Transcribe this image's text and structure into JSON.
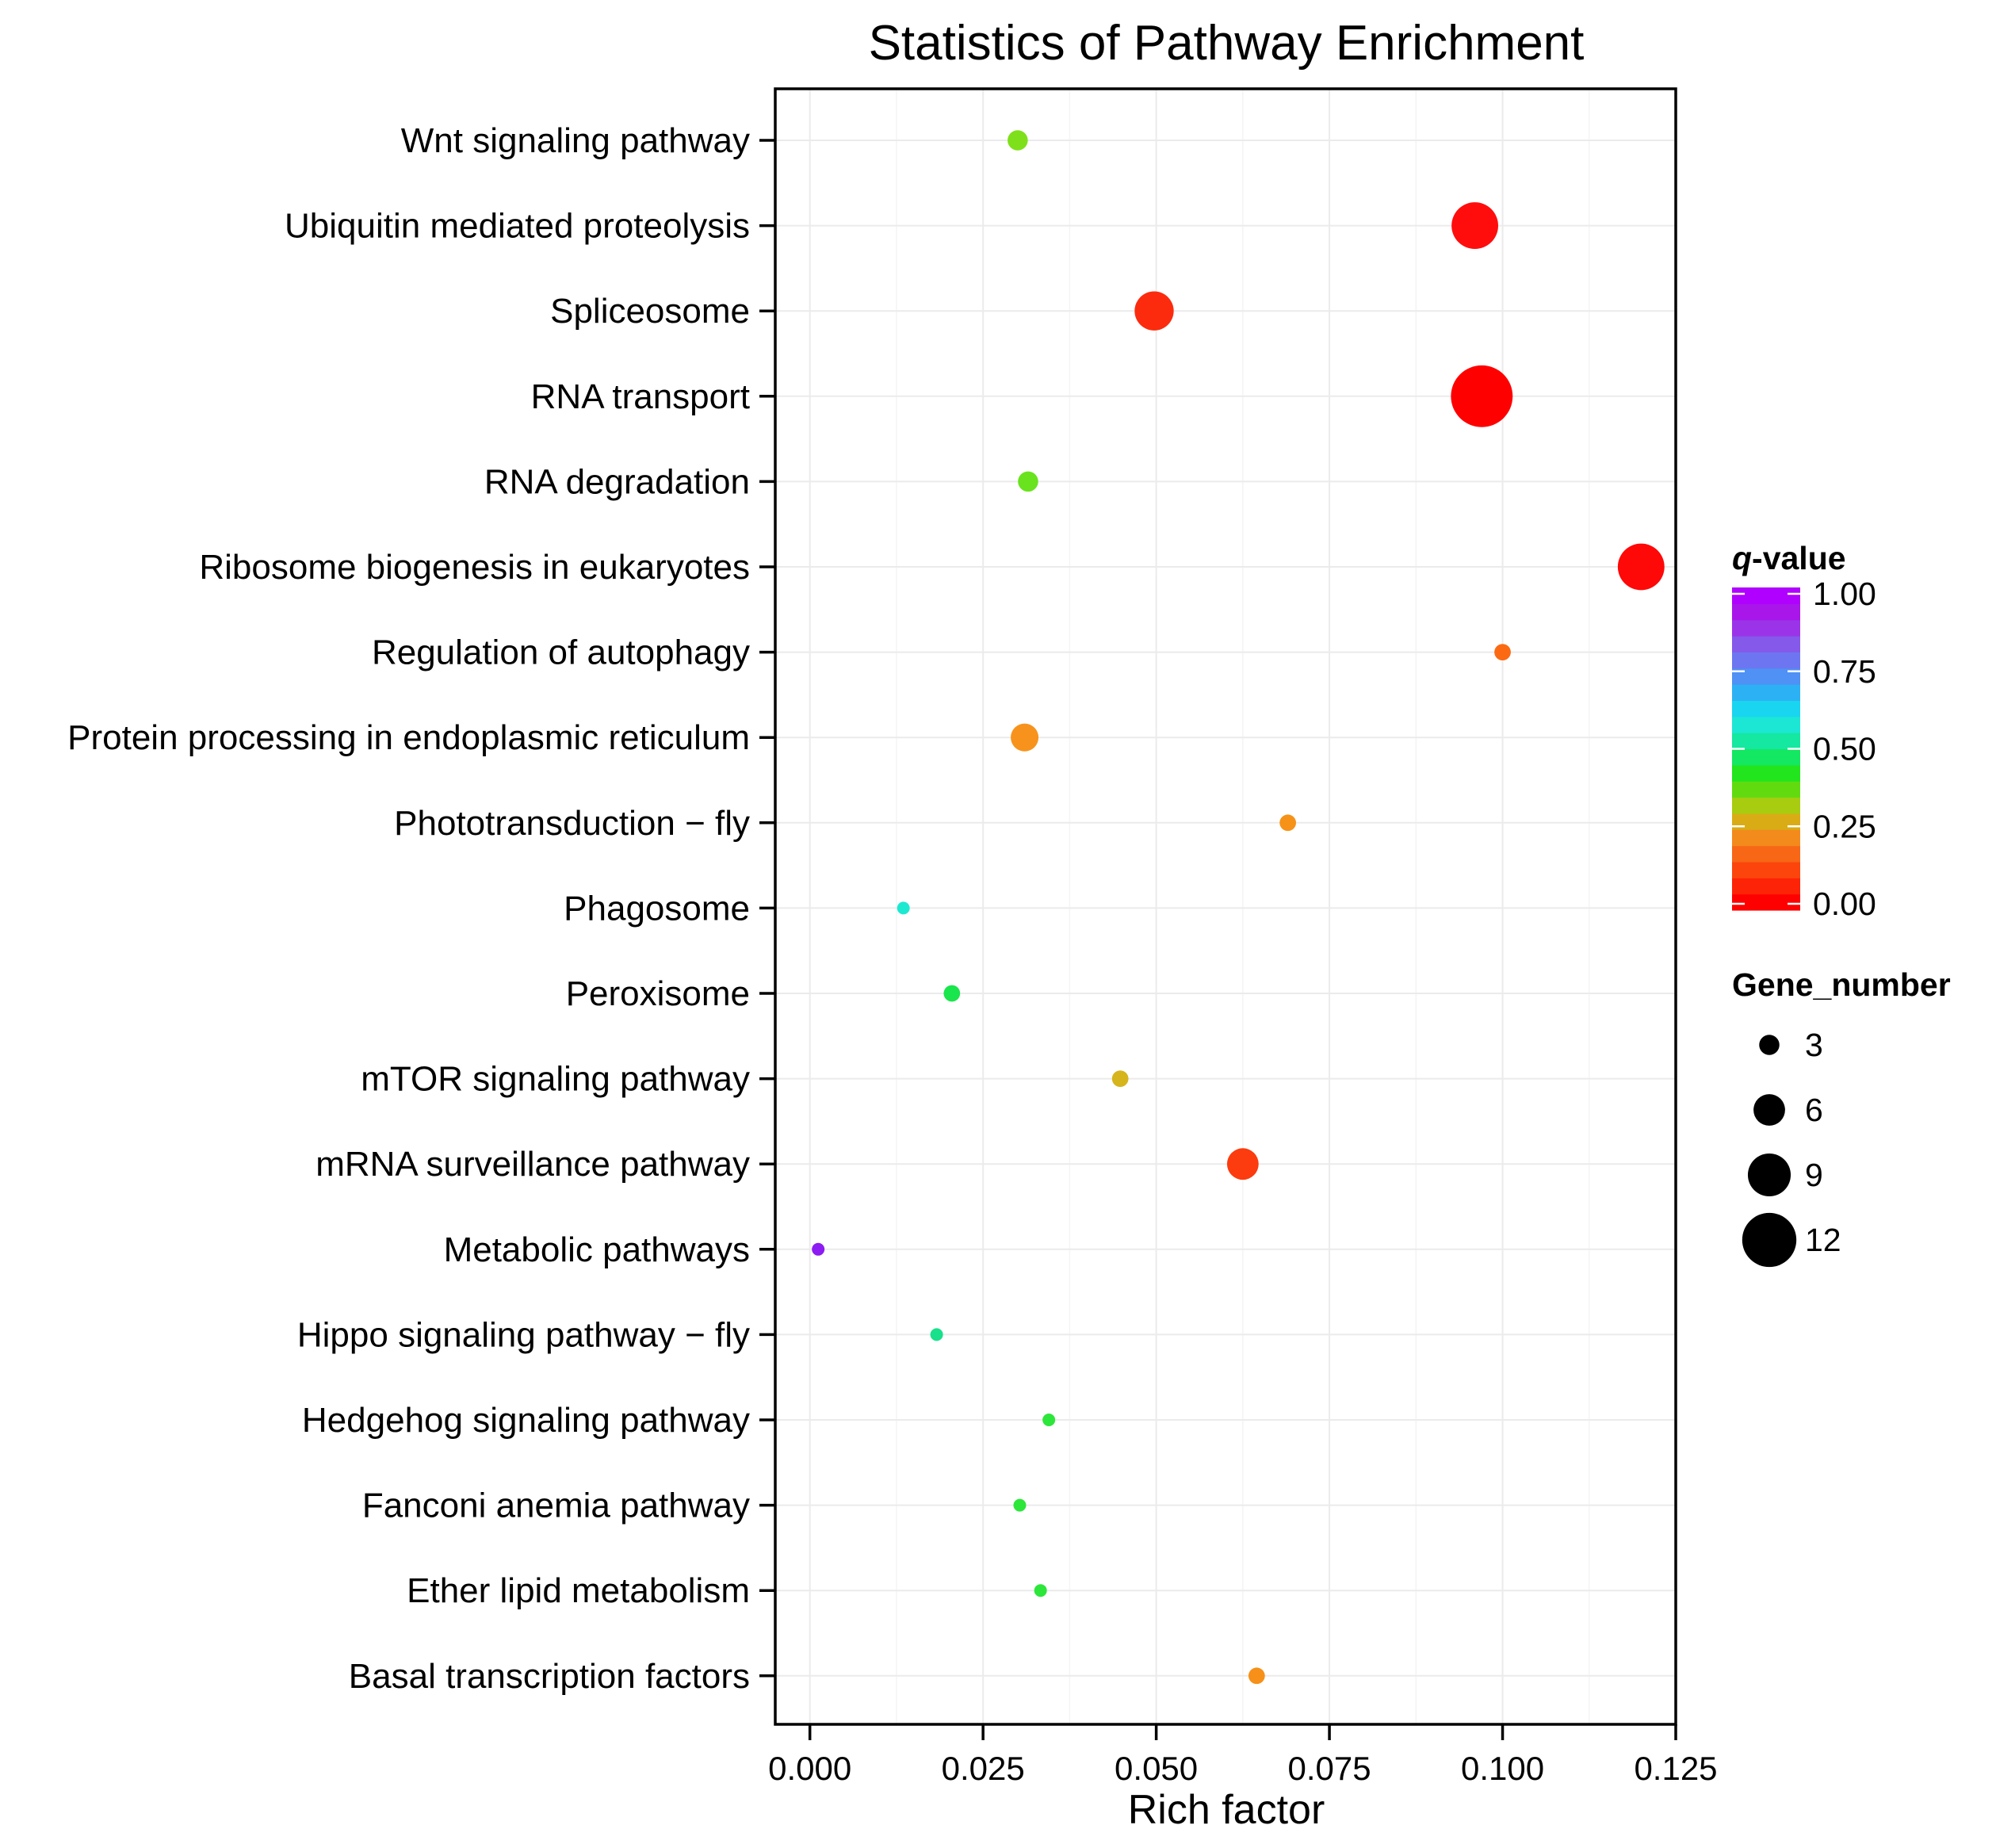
{
  "chart_data": {
    "type": "scatter",
    "title": "Statistics of Pathway Enrichment",
    "xlabel": "Rich factor",
    "ylabel": "",
    "xlim": [
      -0.005,
      0.125
    ],
    "x_ticks": [
      0.0,
      0.025,
      0.05,
      0.075,
      0.1,
      0.125
    ],
    "x_tick_labels": [
      "0.000",
      "0.025",
      "0.050",
      "0.075",
      "0.100",
      "0.125"
    ],
    "points": [
      {
        "pathway": "Wnt signaling pathway",
        "rich_factor": 0.03,
        "q_value": 0.3,
        "gene_number": 3,
        "color": "#7ee01a"
      },
      {
        "pathway": "Ubiquitin mediated proteolysis",
        "rich_factor": 0.096,
        "q_value": 0.01,
        "gene_number": 10,
        "color": "#ff0d0d"
      },
      {
        "pathway": "Spliceosome",
        "rich_factor": 0.0497,
        "q_value": 0.03,
        "gene_number": 8,
        "color": "#fc2b0e"
      },
      {
        "pathway": "RNA transport",
        "rich_factor": 0.097,
        "q_value": 0.0,
        "gene_number": 14,
        "color": "#ff0000"
      },
      {
        "pathway": "RNA degradation",
        "rich_factor": 0.0315,
        "q_value": 0.3,
        "gene_number": 3,
        "color": "#68e31d"
      },
      {
        "pathway": "Ribosome biogenesis in eukaryotes",
        "rich_factor": 0.12,
        "q_value": 0.01,
        "gene_number": 10,
        "color": "#ff0808"
      },
      {
        "pathway": "Regulation of autophagy",
        "rich_factor": 0.1,
        "q_value": 0.08,
        "gene_number": 2,
        "color": "#fb6a13"
      },
      {
        "pathway": "Protein processing in endoplasmic reticulum",
        "rich_factor": 0.031,
        "q_value": 0.12,
        "gene_number": 5,
        "color": "#f7931c"
      },
      {
        "pathway": "Phototransduction − fly",
        "rich_factor": 0.069,
        "q_value": 0.12,
        "gene_number": 2,
        "color": "#f69218"
      },
      {
        "pathway": "Phagosome",
        "rich_factor": 0.0135,
        "q_value": 0.62,
        "gene_number": 1,
        "color": "#1de9d1"
      },
      {
        "pathway": "Peroxisome",
        "rich_factor": 0.0205,
        "q_value": 0.45,
        "gene_number": 2,
        "color": "#19e54c"
      },
      {
        "pathway": "mTOR signaling pathway",
        "rich_factor": 0.0448,
        "q_value": 0.2,
        "gene_number": 2,
        "color": "#d6b41c"
      },
      {
        "pathway": "mRNA surveillance pathway",
        "rich_factor": 0.0625,
        "q_value": 0.04,
        "gene_number": 6,
        "color": "#fc3b0e"
      },
      {
        "pathway": "Metabolic pathways",
        "rich_factor": 0.0012,
        "q_value": 1.0,
        "gene_number": 1,
        "color": "#8c1cf2"
      },
      {
        "pathway": "Hippo signaling pathway − fly",
        "rich_factor": 0.0183,
        "q_value": 0.55,
        "gene_number": 1,
        "color": "#18e08b"
      },
      {
        "pathway": "Hedgehog signaling pathway",
        "rich_factor": 0.0345,
        "q_value": 0.4,
        "gene_number": 1,
        "color": "#2ce63a"
      },
      {
        "pathway": "Fanconi anemia pathway",
        "rich_factor": 0.0303,
        "q_value": 0.4,
        "gene_number": 1,
        "color": "#2ce63a"
      },
      {
        "pathway": "Ether lipid metabolism",
        "rich_factor": 0.0333,
        "q_value": 0.4,
        "gene_number": 1,
        "color": "#2ce63a"
      },
      {
        "pathway": "Basal transcription factors",
        "rich_factor": 0.0645,
        "q_value": 0.12,
        "gene_number": 2,
        "color": "#f79018"
      }
    ],
    "color_legend": {
      "title_italic": "q",
      "title_rest": "-value",
      "ticks": [
        1.0,
        0.75,
        0.5,
        0.25,
        0.0
      ],
      "tick_labels": [
        "1.00",
        "0.75",
        "0.50",
        "0.25",
        "0.00"
      ],
      "colors": [
        "#ff0000",
        "#fd2306",
        "#fb450c",
        "#f76716",
        "#f38a1c",
        "#d9ac15",
        "#a8cc10",
        "#61db10",
        "#22e51d",
        "#14e761",
        "#15e8a0",
        "#1be7d4",
        "#19d5ef",
        "#2cb2f4",
        "#4f91f4",
        "#6d76f0",
        "#8559ea",
        "#9b34e8",
        "#a816ea",
        "#b000ff"
      ]
    },
    "size_legend": {
      "title": "Gene_number",
      "values": [
        3,
        6,
        9,
        12
      ],
      "labels": [
        "3",
        "6",
        "9",
        "12"
      ]
    },
    "grid": true
  }
}
